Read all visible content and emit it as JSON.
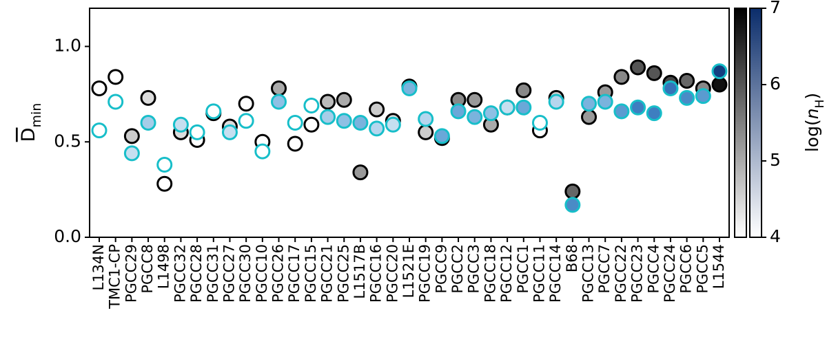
{
  "chart_data": {
    "type": "scatter",
    "y_label": {
      "main": "D",
      "sub": "min"
    },
    "categories": [
      "L134N",
      "TMC1-CP",
      "PGCC29",
      "PGCC8",
      "L1498",
      "PGCC32",
      "PGCC28",
      "PGCC31",
      "PGCC27",
      "PGCC30",
      "PGCC10",
      "PGCC26",
      "PGCC17",
      "PGCC15",
      "PGCC21",
      "PGCC25",
      "L1517B",
      "PGCC16",
      "PGCC20",
      "L1521E",
      "PGCC19",
      "PGCC9",
      "PGCC2",
      "PGCC3",
      "PGCC18",
      "PGCC12",
      "PGCC1",
      "PGCC11",
      "PGCC14",
      "B68",
      "PGCC13",
      "PGCC7",
      "PGCC22",
      "PGCC23",
      "PGCC4",
      "PGCC24",
      "PGCC6",
      "PGCC5",
      "L1544"
    ],
    "ylim": [
      0,
      1.2
    ],
    "yticks": [
      {
        "value": 0,
        "label": "0.0"
      },
      {
        "value": 0.5,
        "label": "0.5"
      },
      {
        "value": 1,
        "label": "1.0"
      }
    ],
    "series": [
      {
        "edge_color": "#000000",
        "values": [
          0.78,
          0.84,
          0.53,
          0.73,
          0.28,
          0.55,
          0.51,
          0.65,
          0.58,
          0.7,
          0.5,
          0.78,
          0.49,
          0.59,
          0.71,
          0.72,
          0.34,
          0.67,
          0.61,
          0.79,
          0.55,
          0.52,
          0.72,
          0.72,
          0.59,
          0.68,
          0.77,
          0.56,
          0.73,
          0.24,
          0.63,
          0.76,
          0.84,
          0.89,
          0.86,
          0.81,
          0.82,
          0.78,
          0.8
        ],
        "colors": [
          "#ffffff",
          "#ffffff",
          "#cccccc",
          "#dddddd",
          "#ffffff",
          "#dddddd",
          "#ffffff",
          "#ffffff",
          "#dddddd",
          "#ffffff",
          "#ffffff",
          "#aaaaaa",
          "#ffffff",
          "#ffffff",
          "#bbbbbb",
          "#aaaaaa",
          "#999999",
          "#cccccc",
          "#dddddd",
          "#999999",
          "#cccccc",
          "#888888",
          "#888888",
          "#999999",
          "#aaaaaa",
          "#dddddd",
          "#888888",
          "#ffffff",
          "#cccccc",
          "#666666",
          "#999999",
          "#999999",
          "#888888",
          "#555555",
          "#555555",
          "#444444",
          "#666666",
          "#888888",
          "#111111"
        ]
      },
      {
        "edge_color": "#17bec9",
        "values": [
          0.56,
          0.71,
          0.44,
          0.6,
          0.38,
          0.59,
          0.55,
          0.66,
          0.55,
          0.61,
          0.45,
          0.71,
          0.6,
          0.69,
          0.63,
          0.61,
          0.6,
          0.57,
          0.59,
          0.78,
          0.62,
          0.53,
          0.66,
          0.63,
          0.65,
          0.68,
          0.68,
          0.6,
          0.71,
          0.17,
          0.7,
          0.71,
          0.66,
          0.68,
          0.65,
          0.78,
          0.73,
          0.74,
          0.87
        ],
        "colors": [
          "#ffffff",
          "#ffffff",
          "#c6dff0",
          "#a6cde8",
          "#ffffff",
          "#c6dff0",
          "#ffffff",
          "#ffffff",
          "#c6dff0",
          "#ffffff",
          "#ffffff",
          "#8ec0e4",
          "#ffffff",
          "#ffffff",
          "#a6cde8",
          "#8ec0e4",
          "#7ab3dd",
          "#b6d6ee",
          "#c6dff0",
          "#7ab3dd",
          "#b6d6ee",
          "#6aa8d8",
          "#6aa8d8",
          "#7ab3dd",
          "#8ec0e4",
          "#c6dff0",
          "#6aa8d8",
          "#ffffff",
          "#b6d6ee",
          "#4a8bc6",
          "#7ab3dd",
          "#7ab3dd",
          "#5a9bd0",
          "#3e7ec0",
          "#3e7ec0",
          "#3573b8",
          "#4a8bc6",
          "#5a9bd0",
          "#123f80"
        ]
      }
    ],
    "colorbar": {
      "label": {
        "pre": "log(",
        "var": "n",
        "sub": "H",
        "post": ")"
      },
      "clim": [
        4,
        7
      ],
      "ticks": [
        4,
        5,
        6,
        7
      ],
      "maps": [
        [
          "#ffffff",
          "#000000"
        ],
        [
          "#ffffff",
          "#0b2d6b"
        ]
      ]
    }
  }
}
